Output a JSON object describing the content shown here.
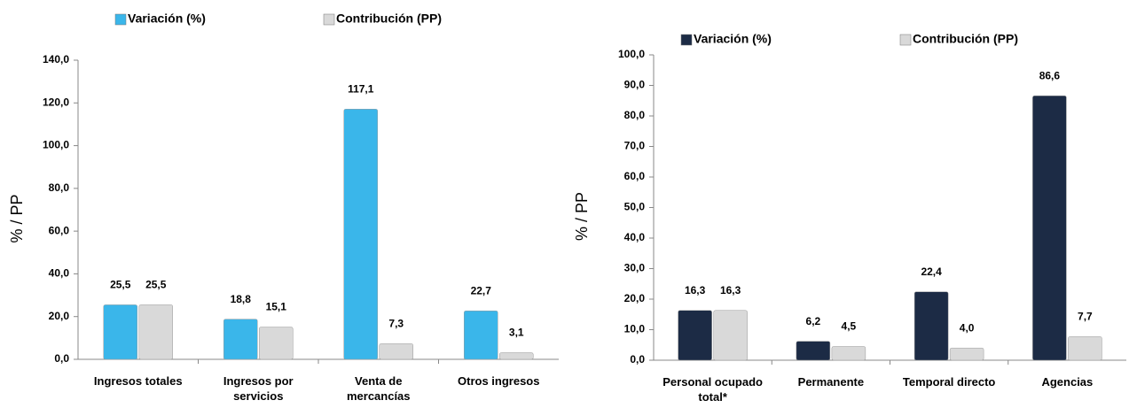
{
  "chart_data": [
    {
      "type": "bar",
      "y_label": "% / PP",
      "categories": [
        "Ingresos totales",
        "Ingresos por servicios",
        "Venta de mercancías",
        "Otros ingresos"
      ],
      "series": [
        {
          "name": "Variación (%)",
          "color": "#3ab6ea",
          "values": [
            25.5,
            18.8,
            117.1,
            22.7
          ],
          "value_labels": [
            "25,5",
            "18,8",
            "117,1",
            "22,7"
          ]
        },
        {
          "name": "Contribución (PP)",
          "color": "#d9d9d9",
          "values": [
            25.5,
            15.1,
            7.3,
            3.1
          ],
          "value_labels": [
            "25,5",
            "15,1",
            "7,3",
            "3,1"
          ]
        }
      ],
      "ylim": [
        0,
        140
      ],
      "yticks": [
        {
          "value": 0,
          "label": "0,0"
        },
        {
          "value": 20,
          "label": "20,0"
        },
        {
          "value": 40,
          "label": "40,0"
        },
        {
          "value": 60,
          "label": "60,0"
        },
        {
          "value": 80,
          "label": "80,0"
        },
        {
          "value": 100,
          "label": "100,0"
        },
        {
          "value": 120,
          "label": "120,0"
        },
        {
          "value": 140,
          "label": "140,0"
        }
      ]
    },
    {
      "type": "bar",
      "y_label": "% / PP",
      "categories": [
        "Personal ocupado total*",
        "Permanente",
        "Temporal directo",
        "Agencias"
      ],
      "series": [
        {
          "name": "Variación (%)",
          "color": "#1c2b45",
          "values": [
            16.3,
            6.2,
            22.4,
            86.6
          ],
          "value_labels": [
            "16,3",
            "6,2",
            "22,4",
            "86,6"
          ]
        },
        {
          "name": "Contribución (PP)",
          "color": "#d9d9d9",
          "values": [
            16.3,
            4.5,
            4.0,
            7.7
          ],
          "value_labels": [
            "16,3",
            "4,5",
            "4,0",
            "7,7"
          ]
        }
      ],
      "ylim": [
        0,
        100
      ],
      "yticks": [
        {
          "value": 0,
          "label": "0,0"
        },
        {
          "value": 10,
          "label": "10,0"
        },
        {
          "value": 20,
          "label": "20,0"
        },
        {
          "value": 30,
          "label": "30,0"
        },
        {
          "value": 40,
          "label": "40,0"
        },
        {
          "value": 50,
          "label": "50,0"
        },
        {
          "value": 60,
          "label": "60,0"
        },
        {
          "value": 70,
          "label": "70,0"
        },
        {
          "value": 80,
          "label": "80,0"
        },
        {
          "value": 90,
          "label": "90,0"
        },
        {
          "value": 100,
          "label": "100,0"
        }
      ]
    }
  ]
}
